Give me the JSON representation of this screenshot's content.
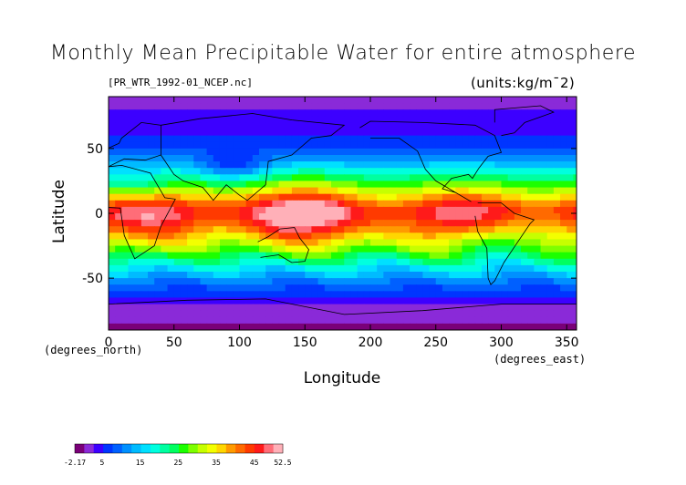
{
  "header": {
    "title": "Monthly Mean Precipitable Water for entire atmosphere",
    "file_label": "[PR_WTR_1992-01_NCEP.nc]",
    "units_label": "(units:kg/m¯2)"
  },
  "chart_data": {
    "type": "heatmap",
    "title": "Monthly Mean Precipitable Water for entire atmosphere",
    "xlabel": "Longitude",
    "ylabel": "Latitude",
    "x_unit_label": "(degrees_east)",
    "y_unit_label": "(degrees_north)",
    "xlim": [
      0,
      357.5
    ],
    "ylim": [
      -90,
      90
    ],
    "x_ticks": [
      0,
      50,
      100,
      150,
      200,
      250,
      300,
      350
    ],
    "y_ticks": [
      -50,
      0,
      50
    ],
    "grid": false,
    "colorbar": {
      "ticks": [
        -2.17,
        5,
        15,
        25,
        35,
        45,
        52.5
      ],
      "tick_labels": [
        "-2.17",
        "5",
        "15",
        "25",
        "35",
        "45",
        "52.5"
      ],
      "colors": [
        "#7a0078",
        "#8a2ad8",
        "#3c00ff",
        "#0035ff",
        "#0060ff",
        "#0090ff",
        "#00bbff",
        "#00e0ff",
        "#00ffdf",
        "#00ffa0",
        "#00ff60",
        "#1cff00",
        "#7dff00",
        "#c6ff00",
        "#f3ff00",
        "#ffd600",
        "#ff9a00",
        "#ff6a00",
        "#ff3a00",
        "#ff1a1a",
        "#ff6d78",
        "#ffb0b8"
      ]
    },
    "lat_profile": {
      "latitudes": [
        90,
        75,
        60,
        50,
        40,
        30,
        20,
        12,
        5,
        0,
        -5,
        -12,
        -20,
        -30,
        -40,
        -50,
        -60,
        -70,
        -80,
        -90
      ],
      "values": [
        2,
        3,
        5,
        8,
        13,
        21,
        30,
        38,
        45,
        47,
        45,
        41,
        35,
        27,
        19,
        12,
        7,
        3,
        1,
        -1
      ]
    }
  }
}
